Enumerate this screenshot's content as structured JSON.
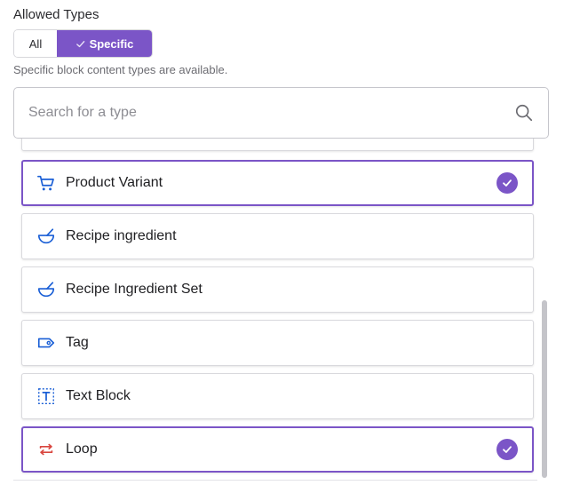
{
  "allowed_types": {
    "label": "Allowed Types",
    "options": [
      "All",
      "Specific"
    ],
    "selected": "Specific",
    "helper": "Specific block content types are available."
  },
  "search": {
    "placeholder": "Search for a type",
    "value": "",
    "icon": "search-icon"
  },
  "types": [
    {
      "label": "Product Variant",
      "icon": "cart-icon",
      "selected": true
    },
    {
      "label": "Recipe ingredient",
      "icon": "bowl-icon",
      "selected": false
    },
    {
      "label": "Recipe Ingredient Set",
      "icon": "bowl-icon",
      "selected": false
    },
    {
      "label": "Tag",
      "icon": "tag-icon",
      "selected": false
    },
    {
      "label": "Text Block",
      "icon": "text-block-icon",
      "selected": false
    },
    {
      "label": "Loop",
      "icon": "loop-icon",
      "selected": true
    }
  ],
  "colors": {
    "accent": "#7b55c7",
    "icon_blue": "#1a5fd6",
    "loop_red": "#d9463f"
  }
}
